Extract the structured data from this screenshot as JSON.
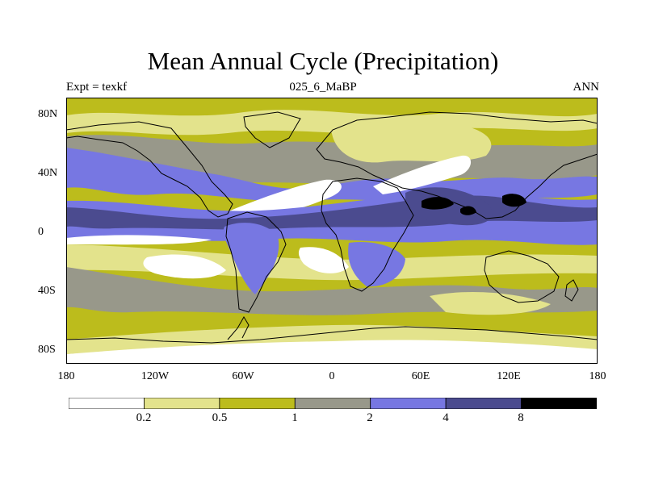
{
  "title": "Mean Annual Cycle (Precipitation)",
  "left_label": "Expt = texkf",
  "center_label": "025_6_MaBP",
  "right_label": "ANN",
  "lat_ticks": [
    "80N",
    "40N",
    "0",
    "40S",
    "80S"
  ],
  "lon_ticks": [
    "180",
    "120W",
    "60W",
    "0",
    "60E",
    "120E",
    "180"
  ],
  "colorbar": {
    "levels": [
      "0.2",
      "0.5",
      "1",
      "2",
      "4",
      "8"
    ],
    "colors": [
      "#ffffff",
      "#e3e38c",
      "#bcbc1c",
      "#98988a",
      "#7777e2",
      "#4b4b8f",
      "#000000"
    ]
  }
}
